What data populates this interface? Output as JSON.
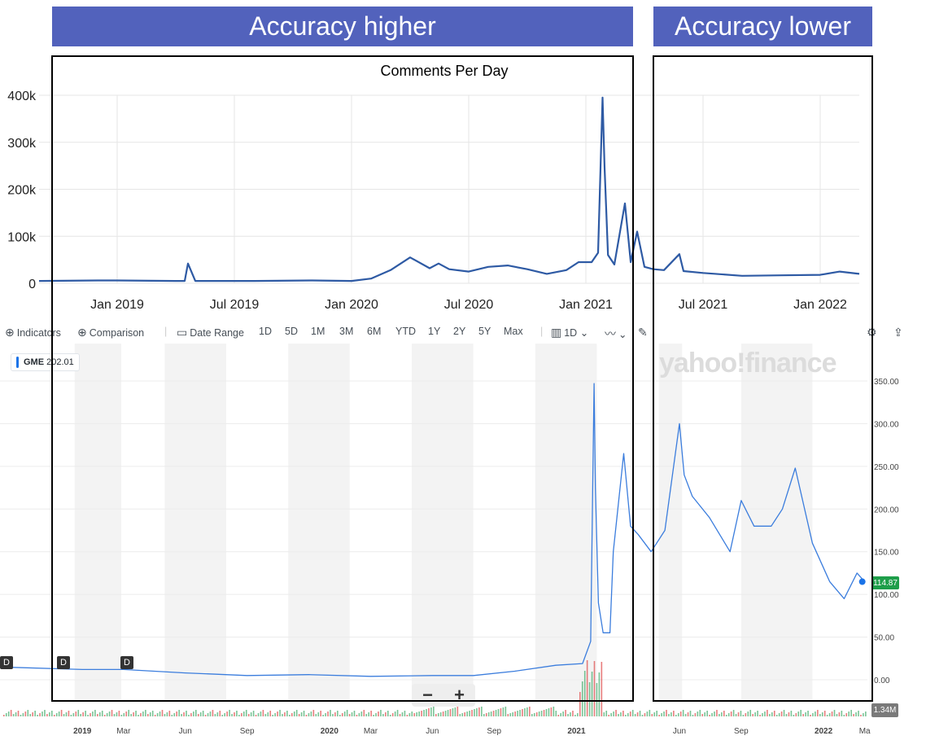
{
  "banners": {
    "left": "Accuracy higher",
    "right": "Accuracy lower"
  },
  "toolbar": {
    "indicators": "Indicators",
    "comparison": "Comparison",
    "date_range": "Date Range",
    "ranges": [
      "1D",
      "5D",
      "1M",
      "3M",
      "6M",
      "YTD",
      "1Y",
      "2Y",
      "5Y",
      "Max"
    ],
    "interval": "1D",
    "icons": [
      "plus-circle-icon",
      "calendar-icon",
      "candle-icon",
      "line-chart-icon",
      "pencil-icon",
      "gear-icon",
      "share-icon"
    ]
  },
  "ticker": {
    "symbol": "GME",
    "value": "202.01"
  },
  "watermark": "yahoo!finance",
  "price_label": "114.87",
  "volume_label": "1.34M",
  "dividend_marker": "D",
  "zoom": {
    "minus": "−",
    "plus": "+"
  },
  "colors": {
    "banner": "#5262bc",
    "comments_line": "#2e5aa4",
    "price_line": "#3b7ddd",
    "price_badge": "#1e9e4a"
  },
  "chart_data": [
    {
      "type": "line",
      "title": "Comments Per Day",
      "x_ticks": [
        "Jan 2019",
        "Jul 2019",
        "Jan 2020",
        "Jul 2020",
        "Jan 2021",
        "Jul 2021",
        "Jan 2022"
      ],
      "y_ticks": [
        "0",
        "100k",
        "200k",
        "300k",
        "400k"
      ],
      "ylim": [
        0,
        400000
      ],
      "grid": true,
      "series": [
        {
          "x": [
            "2018-09",
            "2018-12",
            "2019-01",
            "2019-04",
            "2019-04-15",
            "2019-04-20",
            "2019-05",
            "2019-08",
            "2019-11",
            "2020-01",
            "2020-02",
            "2020-03",
            "2020-04",
            "2020-05",
            "2020-05-15",
            "2020-06",
            "2020-07",
            "2020-08",
            "2020-09",
            "2020-10",
            "2020-11",
            "2020-12",
            "2020-12-20",
            "2021-01-10",
            "2021-01-20",
            "2021-01-27",
            "2021-01-30",
            "2021-02-05",
            "2021-02-15",
            "2021-03-01",
            "2021-03-10",
            "2021-03-20",
            "2021-04-01",
            "2021-04-15",
            "2021-05",
            "2021-05-25",
            "2021-06",
            "2021-07",
            "2021-09",
            "2021-11",
            "2022-01",
            "2022-02",
            "2022-03"
          ],
          "y": [
            5000,
            6000,
            6000,
            5000,
            5000,
            42000,
            5000,
            5000,
            6000,
            5000,
            10000,
            28000,
            55000,
            32000,
            42000,
            30000,
            25000,
            35000,
            38000,
            30000,
            20000,
            28000,
            45000,
            45000,
            65000,
            395000,
            250000,
            60000,
            40000,
            170000,
            45000,
            110000,
            35000,
            30000,
            28000,
            62000,
            26000,
            22000,
            16000,
            17000,
            18000,
            25000,
            20000
          ]
        }
      ]
    },
    {
      "type": "line",
      "ticker": "GME",
      "x_ticks": [
        "2019",
        "Mar",
        "Jun",
        "Sep",
        "2020",
        "Mar",
        "Jun",
        "Sep",
        "2021",
        "Jun",
        "Sep",
        "2022",
        "Ma"
      ],
      "y_ticks": [
        "0.00",
        "50.00",
        "100.00",
        "150.00",
        "200.00",
        "250.00",
        "300.00",
        "350.00"
      ],
      "ylim": [
        -20,
        370
      ],
      "grid": true,
      "series": [
        {
          "x": [
            "2018-09",
            "2019-01",
            "2019-03",
            "2019-06",
            "2019-09",
            "2019-12",
            "2020-03",
            "2020-06",
            "2020-08",
            "2020-10",
            "2020-12",
            "2021-01-10",
            "2021-01-22",
            "2021-01-27",
            "2021-01-29",
            "2021-02-03",
            "2021-02-10",
            "2021-02-20",
            "2021-02-25",
            "2021-03-10",
            "2021-03-20",
            "2021-04-01",
            "2021-04-20",
            "2021-05-10",
            "2021-06-01",
            "2021-06-08",
            "2021-06-20",
            "2021-07-15",
            "2021-08-15",
            "2021-09-01",
            "2021-09-20",
            "2021-10-15",
            "2021-11-01",
            "2021-11-20",
            "2021-12-15",
            "2022-01-10",
            "2022-02-01",
            "2022-02-20",
            "2022-03-01"
          ],
          "y": [
            15,
            12,
            12,
            8,
            5,
            6,
            4,
            5,
            5,
            10,
            17,
            19,
            45,
            347,
            225,
            90,
            55,
            55,
            150,
            265,
            180,
            170,
            150,
            175,
            300,
            240,
            215,
            190,
            150,
            210,
            180,
            180,
            200,
            248,
            160,
            115,
            95,
            125,
            114.87
          ]
        }
      ]
    }
  ]
}
